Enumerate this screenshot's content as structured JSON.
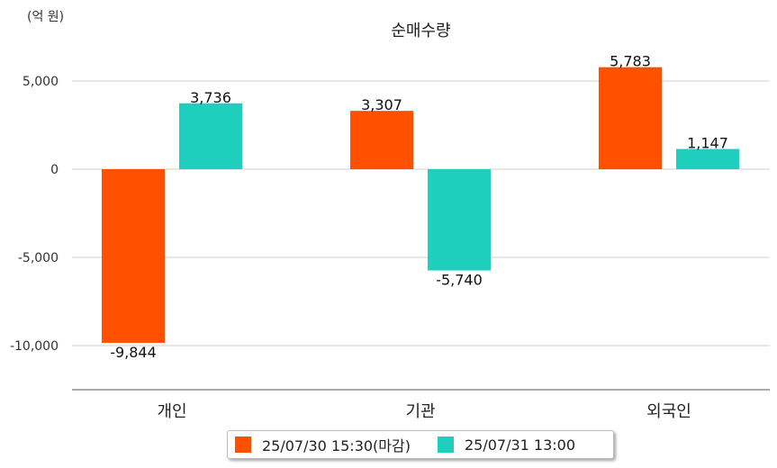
{
  "chart_data": {
    "type": "bar",
    "title": "순매수량",
    "unit_label": "(억 원)",
    "categories": [
      "개인",
      "기관",
      "외국인"
    ],
    "series": [
      {
        "name": "25/07/30 15:30(마감)",
        "color": "#ff5000",
        "values": [
          -9844,
          3307,
          5783
        ]
      },
      {
        "name": "25/07/31 13:00",
        "color": "#1fcfbd",
        "values": [
          3736,
          -5740,
          1147
        ]
      }
    ],
    "value_labels": [
      [
        "-9,844",
        "3,307",
        "5,783"
      ],
      [
        "3,736",
        "-5,740",
        "1,147"
      ]
    ],
    "yticks": [
      5000,
      0,
      -5000,
      -10000
    ],
    "ytick_labels": [
      "5,000",
      "0",
      "-5,000",
      "-10,000"
    ],
    "ylim": [
      -12500,
      7500
    ],
    "grid": true,
    "legend_position": "bottom-center"
  }
}
